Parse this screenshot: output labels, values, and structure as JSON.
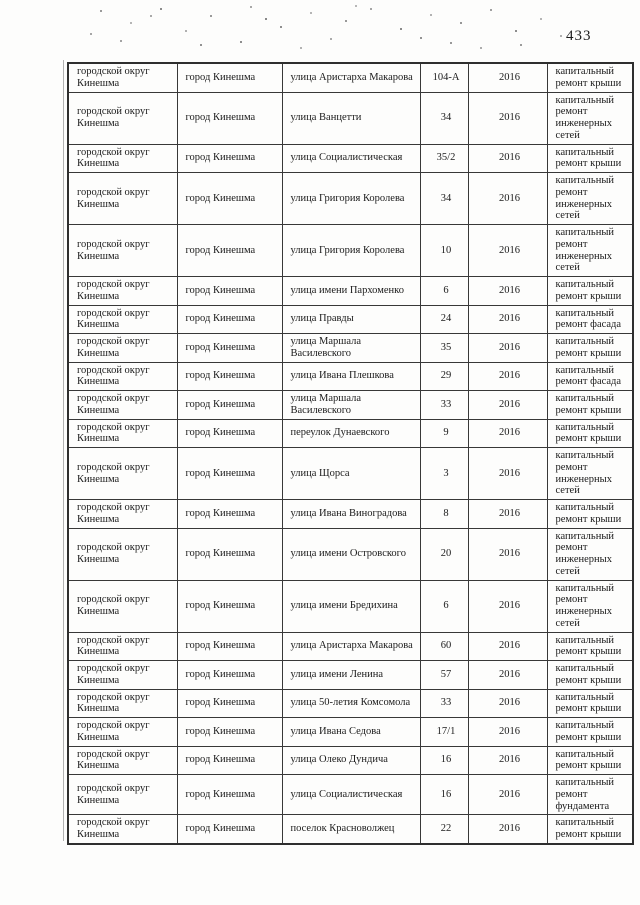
{
  "page_number": "433",
  "table": {
    "rows": [
      {
        "district": "городской округ Кинешма",
        "city": "город Кинешма",
        "street": "улица Аристарха Макарова",
        "house": "104-А",
        "year": "2016",
        "work": "капитальный ремонт крыши"
      },
      {
        "district": "городской округ Кинешма",
        "city": "город Кинешма",
        "street": "улица Ванцетти",
        "house": "34",
        "year": "2016",
        "work": "капитальный ремонт инженерных сетей"
      },
      {
        "district": "городской округ Кинешма",
        "city": "город Кинешма",
        "street": "улица Социалистическая",
        "house": "35/2",
        "year": "2016",
        "work": "капитальный ремонт крыши"
      },
      {
        "district": "городской округ Кинешма",
        "city": "город Кинешма",
        "street": "улица Григория Королева",
        "house": "34",
        "year": "2016",
        "work": "капитальный ремонт инженерных сетей"
      },
      {
        "district": "городской округ Кинешма",
        "city": "город Кинешма",
        "street": "улица Григория Королева",
        "house": "10",
        "year": "2016",
        "work": "капитальный ремонт инженерных сетей"
      },
      {
        "district": "городской округ Кинешма",
        "city": "город Кинешма",
        "street": "улица имени Пархоменко",
        "house": "6",
        "year": "2016",
        "work": "капитальный ремонт крыши"
      },
      {
        "district": "городской округ Кинешма",
        "city": "город Кинешма",
        "street": "улица Правды",
        "house": "24",
        "year": "2016",
        "work": "капитальный ремонт фасада"
      },
      {
        "district": "городской округ Кинешма",
        "city": "город Кинешма",
        "street": "улица Маршала\nВасилевского",
        "house": "35",
        "year": "2016",
        "work": "капитальный ремонт крыши"
      },
      {
        "district": "городской округ Кинешма",
        "city": "город Кинешма",
        "street": "улица Ивана Плешкова",
        "house": "29",
        "year": "2016",
        "work": "капитальный ремонт фасада"
      },
      {
        "district": "городской округ Кинешма",
        "city": "город Кинешма",
        "street": "улица Маршала\nВасилевского",
        "house": "33",
        "year": "2016",
        "work": "капитальный ремонт крыши"
      },
      {
        "district": "городской округ Кинешма",
        "city": "город Кинешма",
        "street": "переулок Дунаевского",
        "house": "9",
        "year": "2016",
        "work": "капитальный ремонт крыши"
      },
      {
        "district": "городской округ Кинешма",
        "city": "город Кинешма",
        "street": "улица Щорса",
        "house": "3",
        "year": "2016",
        "work": "капитальный ремонт инженерных сетей"
      },
      {
        "district": "городской округ Кинешма",
        "city": "город Кинешма",
        "street": "улица Ивана Виноградова",
        "house": "8",
        "year": "2016",
        "work": "капитальный ремонт крыши"
      },
      {
        "district": "городской округ Кинешма",
        "city": "город Кинешма",
        "street": "улица имени Островского",
        "house": "20",
        "year": "2016",
        "work": "капитальный ремонт инженерных сетей"
      },
      {
        "district": "городской округ Кинешма",
        "city": "город Кинешма",
        "street": "улица имени Бредихина",
        "house": "6",
        "year": "2016",
        "work": "капитальный ремонт инженерных сетей"
      },
      {
        "district": "городской округ Кинешма",
        "city": "город Кинешма",
        "street": "улица Аристарха Макарова",
        "house": "60",
        "year": "2016",
        "work": "капитальный ремонт крыши"
      },
      {
        "district": "городской округ Кинешма",
        "city": "город Кинешма",
        "street": "улица имени Ленина",
        "house": "57",
        "year": "2016",
        "work": "капитальный ремонт крыши"
      },
      {
        "district": "городской округ Кинешма",
        "city": "город Кинешма",
        "street": "улица 50-летия Комсомола",
        "house": "33",
        "year": "2016",
        "work": "капитальный ремонт крыши"
      },
      {
        "district": "городской округ Кинешма",
        "city": "город Кинешма",
        "street": "улица Ивана Седова",
        "house": "17/1",
        "year": "2016",
        "work": "капитальный ремонт крыши"
      },
      {
        "district": "городской округ Кинешма",
        "city": "город Кинешма",
        "street": "улица Олеко Дундича",
        "house": "16",
        "year": "2016",
        "work": "капитальный ремонт крыши"
      },
      {
        "district": "городской округ Кинешма",
        "city": "город Кинешма",
        "street": "улица Социалистическая",
        "house": "16",
        "year": "2016",
        "work": "капитальный ремонт фундамента"
      },
      {
        "district": "городской округ Кинешма",
        "city": "город Кинешма",
        "street": "поселок Красноволжец",
        "house": "22",
        "year": "2016",
        "work": "капитальный ремонт крыши"
      }
    ]
  }
}
